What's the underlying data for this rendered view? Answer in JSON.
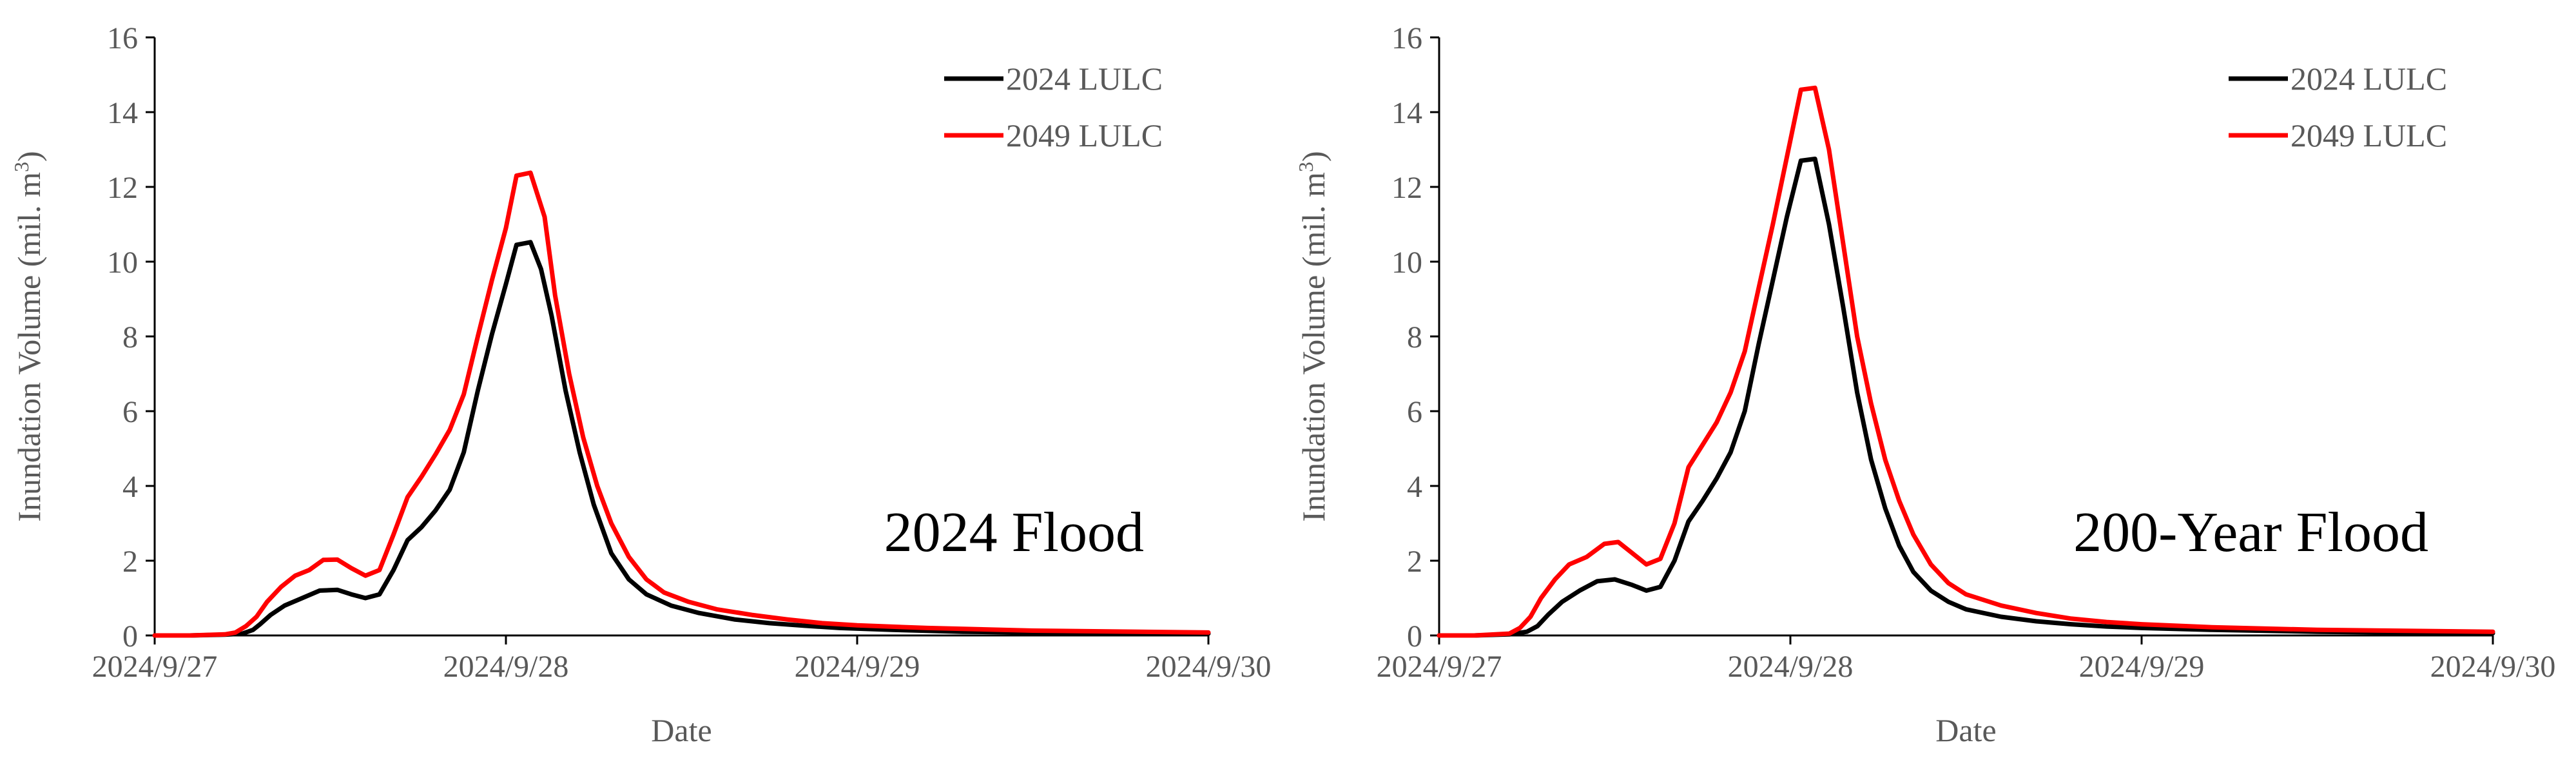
{
  "chart_data": [
    {
      "type": "line",
      "annotation": "2024 Flood",
      "xlabel": "Date",
      "ylabel": "Inundation Volume (mil. m",
      "ylabel_sup": "3",
      "ylabel_close": ")",
      "ylim": [
        0,
        16
      ],
      "yticks": [
        0,
        2,
        4,
        6,
        8,
        10,
        12,
        14,
        16
      ],
      "xlim": [
        0,
        3
      ],
      "xticks": [
        0,
        1,
        2,
        3
      ],
      "xtick_labels": [
        "2024/9/27",
        "2024/9/28",
        "2024/9/29",
        "2024/9/30"
      ],
      "legend_position": "top-right",
      "series": [
        {
          "name": "2024 LULC",
          "color": "#000000",
          "points": [
            [
              0,
              0
            ],
            [
              0.1,
              0
            ],
            [
              0.2,
              0.02
            ],
            [
              0.25,
              0.05
            ],
            [
              0.28,
              0.15
            ],
            [
              0.3,
              0.3
            ],
            [
              0.33,
              0.55
            ],
            [
              0.37,
              0.8
            ],
            [
              0.42,
              1.0
            ],
            [
              0.47,
              1.2
            ],
            [
              0.52,
              1.22
            ],
            [
              0.56,
              1.1
            ],
            [
              0.6,
              1.0
            ],
            [
              0.64,
              1.1
            ],
            [
              0.68,
              1.75
            ],
            [
              0.72,
              2.55
            ],
            [
              0.76,
              2.9
            ],
            [
              0.8,
              3.35
            ],
            [
              0.84,
              3.9
            ],
            [
              0.88,
              4.9
            ],
            [
              0.92,
              6.55
            ],
            [
              0.96,
              8.05
            ],
            [
              1.0,
              9.4
            ],
            [
              1.03,
              10.45
            ],
            [
              1.07,
              10.52
            ],
            [
              1.1,
              9.8
            ],
            [
              1.13,
              8.55
            ],
            [
              1.17,
              6.55
            ],
            [
              1.21,
              4.9
            ],
            [
              1.25,
              3.5
            ],
            [
              1.3,
              2.2
            ],
            [
              1.35,
              1.5
            ],
            [
              1.4,
              1.1
            ],
            [
              1.47,
              0.8
            ],
            [
              1.55,
              0.6
            ],
            [
              1.65,
              0.43
            ],
            [
              1.75,
              0.33
            ],
            [
              1.85,
              0.26
            ],
            [
              1.95,
              0.2
            ],
            [
              2.1,
              0.15
            ],
            [
              2.3,
              0.1
            ],
            [
              2.6,
              0.07
            ],
            [
              3.0,
              0.05
            ]
          ]
        },
        {
          "name": "2049 LULC",
          "color": "#ff0000",
          "points": [
            [
              0,
              0
            ],
            [
              0.1,
              0
            ],
            [
              0.2,
              0.03
            ],
            [
              0.23,
              0.08
            ],
            [
              0.26,
              0.25
            ],
            [
              0.29,
              0.5
            ],
            [
              0.32,
              0.9
            ],
            [
              0.36,
              1.3
            ],
            [
              0.4,
              1.6
            ],
            [
              0.44,
              1.75
            ],
            [
              0.48,
              2.02
            ],
            [
              0.52,
              2.03
            ],
            [
              0.56,
              1.8
            ],
            [
              0.6,
              1.6
            ],
            [
              0.64,
              1.75
            ],
            [
              0.68,
              2.7
            ],
            [
              0.72,
              3.7
            ],
            [
              0.76,
              4.25
            ],
            [
              0.8,
              4.85
            ],
            [
              0.84,
              5.5
            ],
            [
              0.88,
              6.45
            ],
            [
              0.92,
              8.0
            ],
            [
              0.96,
              9.5
            ],
            [
              1.0,
              10.9
            ],
            [
              1.03,
              12.3
            ],
            [
              1.07,
              12.38
            ],
            [
              1.11,
              11.2
            ],
            [
              1.14,
              9.1
            ],
            [
              1.18,
              7.0
            ],
            [
              1.22,
              5.3
            ],
            [
              1.26,
              4.0
            ],
            [
              1.3,
              3.0
            ],
            [
              1.35,
              2.1
            ],
            [
              1.4,
              1.5
            ],
            [
              1.45,
              1.15
            ],
            [
              1.52,
              0.9
            ],
            [
              1.6,
              0.7
            ],
            [
              1.7,
              0.55
            ],
            [
              1.8,
              0.43
            ],
            [
              1.9,
              0.33
            ],
            [
              2.0,
              0.27
            ],
            [
              2.2,
              0.2
            ],
            [
              2.5,
              0.13
            ],
            [
              3.0,
              0.08
            ]
          ]
        }
      ]
    },
    {
      "type": "line",
      "annotation": "200-Year Flood",
      "xlabel": "Date",
      "ylabel": "Inundation Volume (mil. m",
      "ylabel_sup": "3",
      "ylabel_close": ")",
      "ylim": [
        0,
        16
      ],
      "yticks": [
        0,
        2,
        4,
        6,
        8,
        10,
        12,
        14,
        16
      ],
      "xlim": [
        0,
        3
      ],
      "xticks": [
        0,
        1,
        2,
        3
      ],
      "xtick_labels": [
        "2024/9/27",
        "2024/9/28",
        "2024/9/29",
        "2024/9/30"
      ],
      "legend_position": "top-right",
      "series": [
        {
          "name": "2024 LULC",
          "color": "#000000",
          "points": [
            [
              0,
              0
            ],
            [
              0.1,
              0
            ],
            [
              0.2,
              0.03
            ],
            [
              0.25,
              0.1
            ],
            [
              0.28,
              0.25
            ],
            [
              0.31,
              0.55
            ],
            [
              0.35,
              0.9
            ],
            [
              0.4,
              1.2
            ],
            [
              0.45,
              1.45
            ],
            [
              0.5,
              1.5
            ],
            [
              0.55,
              1.35
            ],
            [
              0.59,
              1.2
            ],
            [
              0.63,
              1.3
            ],
            [
              0.67,
              2.0
            ],
            [
              0.71,
              3.05
            ],
            [
              0.75,
              3.6
            ],
            [
              0.79,
              4.2
            ],
            [
              0.83,
              4.9
            ],
            [
              0.87,
              6.0
            ],
            [
              0.91,
              7.8
            ],
            [
              0.95,
              9.5
            ],
            [
              0.99,
              11.2
            ],
            [
              1.03,
              12.7
            ],
            [
              1.07,
              12.75
            ],
            [
              1.11,
              11.0
            ],
            [
              1.15,
              8.8
            ],
            [
              1.19,
              6.5
            ],
            [
              1.23,
              4.7
            ],
            [
              1.27,
              3.4
            ],
            [
              1.31,
              2.4
            ],
            [
              1.35,
              1.7
            ],
            [
              1.4,
              1.2
            ],
            [
              1.45,
              0.9
            ],
            [
              1.5,
              0.7
            ],
            [
              1.6,
              0.5
            ],
            [
              1.7,
              0.38
            ],
            [
              1.8,
              0.3
            ],
            [
              1.9,
              0.24
            ],
            [
              2.0,
              0.2
            ],
            [
              2.2,
              0.15
            ],
            [
              2.5,
              0.1
            ],
            [
              3.0,
              0.06
            ]
          ]
        },
        {
          "name": "2049 LULC",
          "color": "#ff0000",
          "points": [
            [
              0,
              0
            ],
            [
              0.1,
              0
            ],
            [
              0.2,
              0.05
            ],
            [
              0.23,
              0.2
            ],
            [
              0.26,
              0.5
            ],
            [
              0.29,
              1.0
            ],
            [
              0.33,
              1.5
            ],
            [
              0.37,
              1.9
            ],
            [
              0.42,
              2.1
            ],
            [
              0.47,
              2.45
            ],
            [
              0.51,
              2.5
            ],
            [
              0.55,
              2.2
            ],
            [
              0.59,
              1.9
            ],
            [
              0.63,
              2.05
            ],
            [
              0.67,
              3.0
            ],
            [
              0.71,
              4.5
            ],
            [
              0.75,
              5.1
            ],
            [
              0.79,
              5.7
            ],
            [
              0.83,
              6.5
            ],
            [
              0.87,
              7.6
            ],
            [
              0.91,
              9.3
            ],
            [
              0.95,
              11.0
            ],
            [
              0.99,
              12.8
            ],
            [
              1.03,
              14.6
            ],
            [
              1.07,
              14.65
            ],
            [
              1.11,
              13.0
            ],
            [
              1.15,
              10.5
            ],
            [
              1.19,
              8.0
            ],
            [
              1.23,
              6.2
            ],
            [
              1.27,
              4.7
            ],
            [
              1.31,
              3.6
            ],
            [
              1.35,
              2.7
            ],
            [
              1.4,
              1.9
            ],
            [
              1.45,
              1.4
            ],
            [
              1.5,
              1.1
            ],
            [
              1.6,
              0.8
            ],
            [
              1.7,
              0.6
            ],
            [
              1.8,
              0.45
            ],
            [
              1.9,
              0.36
            ],
            [
              2.0,
              0.3
            ],
            [
              2.2,
              0.22
            ],
            [
              2.5,
              0.15
            ],
            [
              3.0,
              0.1
            ]
          ]
        }
      ]
    }
  ]
}
